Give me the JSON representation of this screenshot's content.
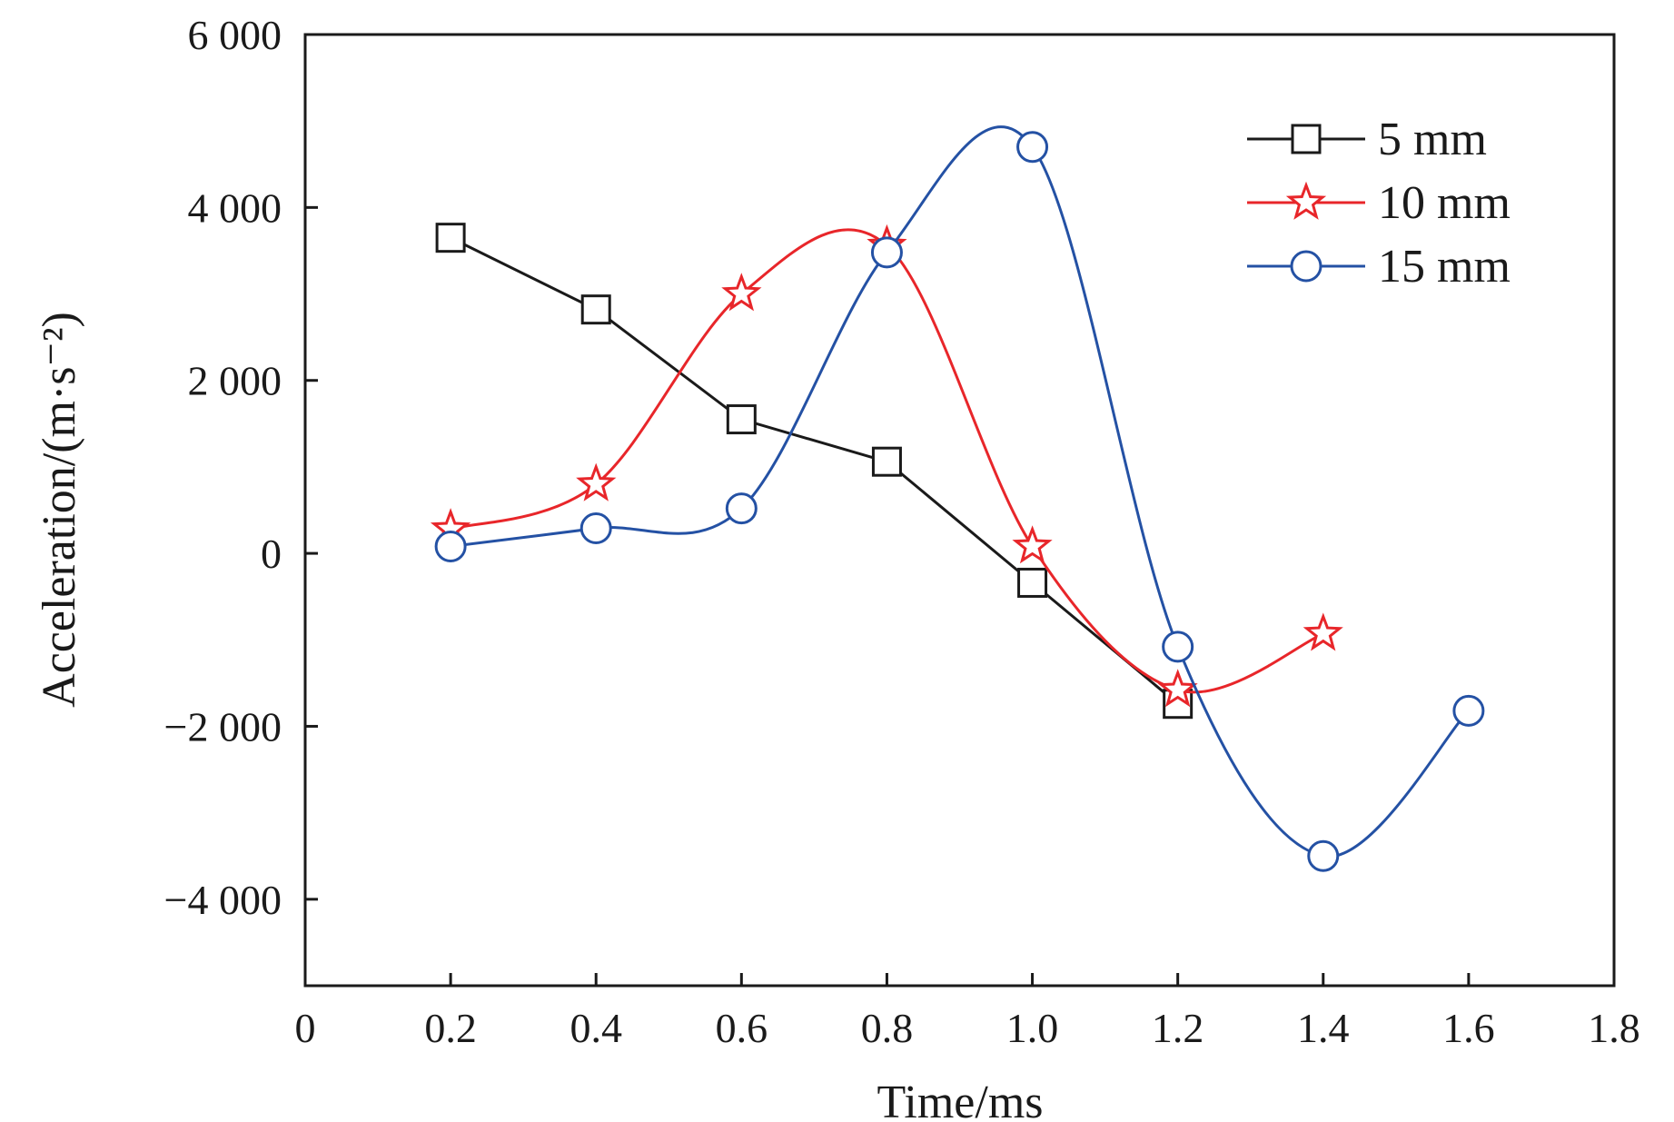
{
  "chart_data": {
    "type": "line",
    "xlabel": "Time/ms",
    "ylabel": "Acceleration/(m·s⁻²)",
    "xlim": [
      0,
      1.8
    ],
    "ylim": [
      -5000,
      6000
    ],
    "xticks": [
      0,
      0.2,
      0.4,
      0.6,
      0.8,
      1.0,
      1.2,
      1.4,
      1.6,
      1.8
    ],
    "xtick_labels": [
      "0",
      "0.2",
      "0.4",
      "0.6",
      "0.8",
      "1.0",
      "1.2",
      "1.4",
      "1.6",
      "1.8"
    ],
    "yticks": [
      -4000,
      -2000,
      0,
      2000,
      4000,
      6000
    ],
    "ytick_labels": [
      "−4 000",
      "−2 000",
      "0",
      "2 000",
      "4 000",
      "6 000"
    ],
    "grid": false,
    "legend_position": "top-right",
    "series": [
      {
        "name": "5 mm",
        "color": "#1a1a1a",
        "marker": "square",
        "x": [
          0.2,
          0.4,
          0.6,
          0.8,
          1.0,
          1.2
        ],
        "y": [
          3650,
          2820,
          1550,
          1060,
          -340,
          -1740
        ]
      },
      {
        "name": "10 mm",
        "color": "#e8262a",
        "marker": "star",
        "x": [
          0.2,
          0.4,
          0.6,
          0.8,
          1.0,
          1.2,
          1.4
        ],
        "y": [
          280,
          800,
          3000,
          3560,
          80,
          -1580,
          -930
        ]
      },
      {
        "name": "15 mm",
        "color": "#2451a4",
        "marker": "circle",
        "x": [
          0.2,
          0.4,
          0.6,
          0.8,
          1.0,
          1.2,
          1.4,
          1.6
        ],
        "y": [
          80,
          290,
          520,
          3480,
          4700,
          -1080,
          -3500,
          -1820
        ]
      }
    ]
  }
}
